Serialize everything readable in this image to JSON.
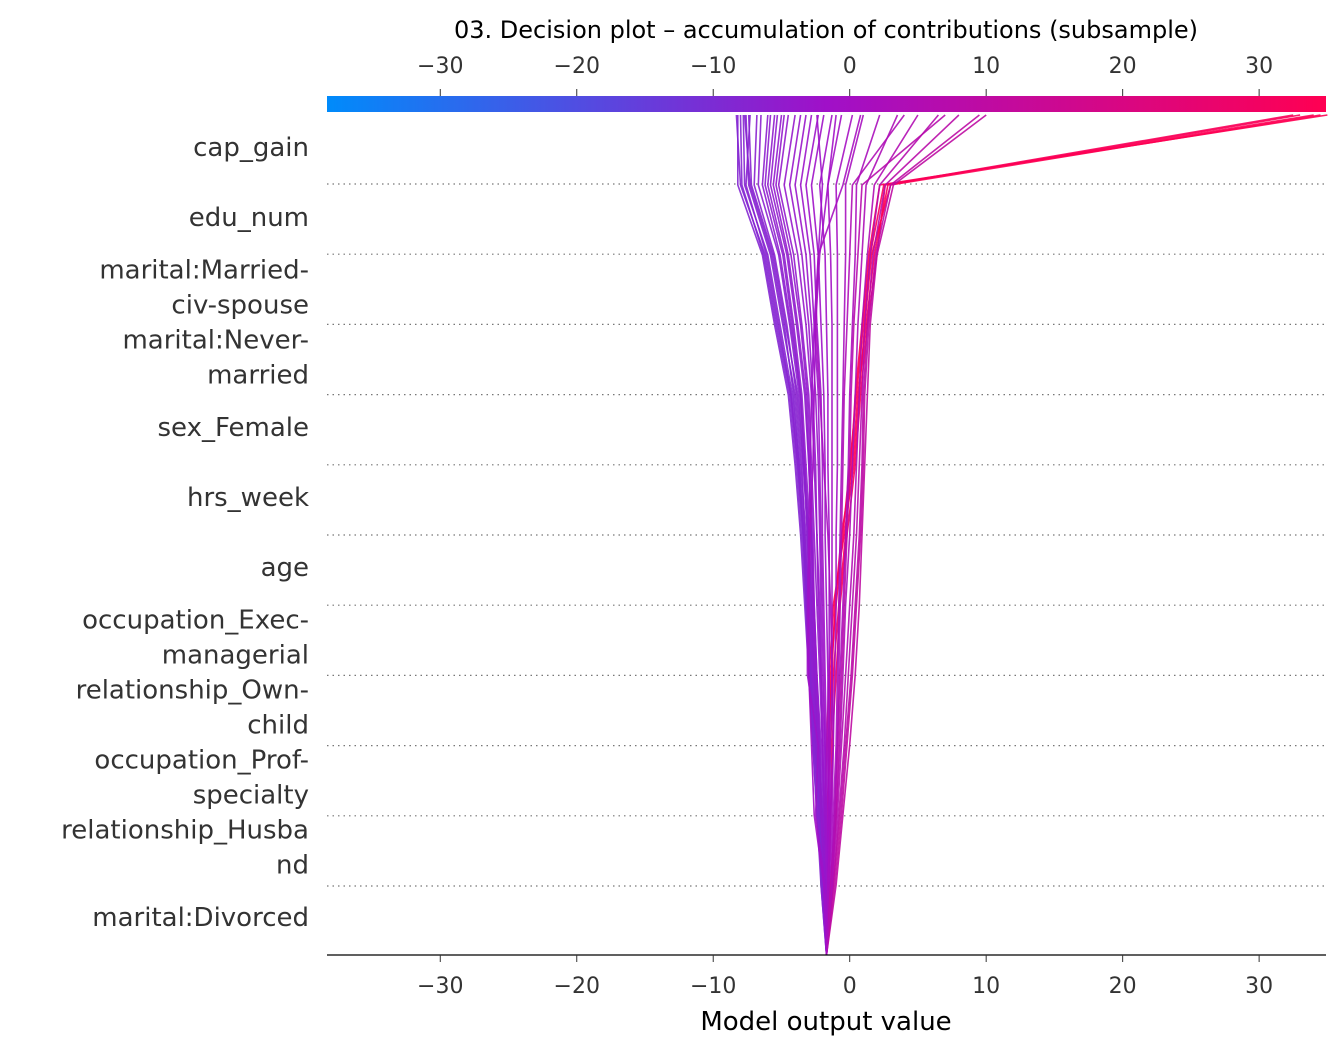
{
  "chart_data": {
    "type": "line",
    "title": "03. Decision plot – accumulation of contributions (subsample)",
    "xlabel": "Model output value",
    "ylabel": "",
    "xlim": [
      -38.3,
      34.9
    ],
    "xticks": [
      -30,
      -20,
      -10,
      0,
      10,
      20,
      30
    ],
    "xtick_labels": [
      "−30",
      "−20",
      "−10",
      "0",
      "10",
      "20",
      "30"
    ],
    "features_top_to_bottom": [
      [
        "cap_gain"
      ],
      [
        "edu_num"
      ],
      [
        "marital:Married-",
        "civ-spouse"
      ],
      [
        "marital:Never-",
        "married"
      ],
      [
        "sex_Female"
      ],
      [
        "hrs_week"
      ],
      [
        "age"
      ],
      [
        "occupation_Exec-",
        "managerial"
      ],
      [
        "relationship_Own-",
        "child"
      ],
      [
        "occupation_Prof-",
        "specialty"
      ],
      [
        "relationship_Husba",
        "nd"
      ],
      [
        "marital:Divorced"
      ]
    ],
    "base_value": -1.7,
    "colormap": {
      "low": "#008bfb",
      "mid": "#a010c8",
      "high": "#ff0052"
    },
    "grid": "dotted horizontal",
    "series": [
      {
        "values": [
          -1.7,
          -1.7,
          -1.6,
          -1.5,
          -1.4,
          -1.0,
          -0.5,
          0.0,
          0.5,
          1.0,
          1.5,
          2.5,
          34.0
        ]
      },
      {
        "values": [
          -1.7,
          -1.8,
          -1.5,
          -1.6,
          -1.3,
          -1.1,
          -0.6,
          0.2,
          0.6,
          1.2,
          1.8,
          2.8,
          33.0
        ]
      },
      {
        "values": [
          -1.7,
          -1.6,
          -1.7,
          -1.4,
          -1.2,
          -0.8,
          -0.3,
          0.1,
          0.4,
          0.9,
          1.4,
          2.2,
          35.0
        ]
      },
      {
        "values": [
          -1.7,
          -1.9,
          -1.8,
          -1.7,
          -1.5,
          -1.2,
          -0.4,
          0.3,
          0.7,
          1.1,
          1.6,
          3.0,
          34.5
        ]
      },
      {
        "values": [
          -1.7,
          -1.5,
          -1.4,
          -1.3,
          -1.0,
          -0.7,
          -0.2,
          0.4,
          0.8,
          1.3,
          2.0,
          2.6,
          32.5
        ]
      },
      {
        "values": [
          -1.7,
          -2.0,
          -2.3,
          -2.6,
          -2.9,
          -3.1,
          -3.4,
          -3.8,
          -4.3,
          -5.3,
          -6.2,
          -8.0,
          -8.3
        ]
      },
      {
        "values": [
          -1.7,
          -2.1,
          -2.4,
          -2.7,
          -3.0,
          -3.2,
          -3.5,
          -3.9,
          -4.4,
          -5.4,
          -6.3,
          -7.9,
          -8.0
        ]
      },
      {
        "values": [
          -1.7,
          -1.9,
          -2.2,
          -2.5,
          -2.8,
          -3.1,
          -3.3,
          -3.7,
          -4.2,
          -5.1,
          -6.0,
          -7.7,
          -7.8
        ]
      },
      {
        "values": [
          -1.7,
          -2.0,
          -2.1,
          -2.4,
          -2.7,
          -3.0,
          -3.2,
          -3.6,
          -4.0,
          -4.9,
          -5.8,
          -7.4,
          -7.6
        ]
      },
      {
        "values": [
          -1.7,
          -1.8,
          -2.0,
          -2.3,
          -2.6,
          -2.8,
          -3.0,
          -3.4,
          -3.8,
          -4.7,
          -5.6,
          -7.2,
          -7.4
        ]
      },
      {
        "values": [
          -1.7,
          -2.1,
          -2.2,
          -2.5,
          -2.9,
          -3.2,
          -3.4,
          -3.8,
          -4.3,
          -5.2,
          -6.1,
          -7.6,
          -7.3
        ]
      },
      {
        "values": [
          -1.7,
          -1.9,
          -2.4,
          -2.7,
          -3.0,
          -3.3,
          -3.6,
          -4.0,
          -4.5,
          -5.5,
          -6.4,
          -8.2,
          -8.2
        ]
      },
      {
        "values": [
          -1.7,
          -2.0,
          -2.3,
          -2.5,
          -2.8,
          -3.0,
          -3.3,
          -3.5,
          -3.9,
          -4.6,
          -5.5,
          -7.0,
          -6.8
        ]
      },
      {
        "values": [
          -1.7,
          -1.8,
          -2.1,
          -2.4,
          -2.6,
          -2.9,
          -3.1,
          -3.4,
          -3.7,
          -4.4,
          -5.2,
          -6.7,
          -6.5
        ]
      },
      {
        "values": [
          -1.7,
          -2.0,
          -2.2,
          -2.6,
          -2.9,
          -3.1,
          -3.4,
          -3.7,
          -4.1,
          -4.8,
          -5.7,
          -7.3,
          -7.7
        ]
      },
      {
        "values": [
          -1.7,
          -1.9,
          -2.1,
          -2.3,
          -2.6,
          -2.8,
          -3.0,
          -3.3,
          -3.6,
          -4.3,
          -5.1,
          -6.4,
          -6.0
        ]
      },
      {
        "values": [
          -1.7,
          -1.8,
          -2.0,
          -2.2,
          -2.5,
          -2.7,
          -2.9,
          -3.2,
          -3.5,
          -4.1,
          -4.8,
          -6.0,
          -5.5
        ]
      },
      {
        "values": [
          -1.7,
          -1.9,
          -2.1,
          -2.4,
          -2.7,
          -2.9,
          -3.1,
          -3.3,
          -3.6,
          -4.2,
          -4.9,
          -6.2,
          -5.8
        ]
      },
      {
        "values": [
          -1.7,
          -1.8,
          -1.9,
          -2.1,
          -2.4,
          -2.6,
          -2.8,
          -3.0,
          -3.2,
          -3.8,
          -4.5,
          -5.6,
          -5.0
        ]
      },
      {
        "values": [
          -1.7,
          -1.7,
          -1.9,
          -2.0,
          -2.2,
          -2.4,
          -2.6,
          -2.8,
          -3.0,
          -3.5,
          -4.1,
          -5.2,
          -4.5
        ]
      },
      {
        "values": [
          -1.7,
          -1.8,
          -2.0,
          -2.3,
          -2.5,
          -2.7,
          -2.8,
          -3.0,
          -3.3,
          -3.9,
          -4.6,
          -5.8,
          -5.3
        ]
      },
      {
        "values": [
          -1.7,
          -1.6,
          -1.8,
          -1.9,
          -2.1,
          -2.3,
          -2.4,
          -2.6,
          -2.8,
          -3.2,
          -3.8,
          -4.8,
          -4.0
        ]
      },
      {
        "values": [
          -1.7,
          -1.7,
          -1.8,
          -2.0,
          -2.1,
          -2.2,
          -2.4,
          -2.5,
          -2.7,
          -3.0,
          -3.5,
          -4.4,
          -3.6
        ]
      },
      {
        "values": [
          -1.7,
          -1.6,
          -1.7,
          -1.8,
          -2.0,
          -2.1,
          -2.2,
          -2.3,
          -2.5,
          -2.8,
          -3.2,
          -4.0,
          -3.2
        ]
      },
      {
        "values": [
          -1.7,
          -1.8,
          -2.1,
          -2.2,
          -2.4,
          -2.6,
          -2.7,
          -2.9,
          -3.1,
          -3.6,
          -4.3,
          -5.4,
          -4.8
        ]
      },
      {
        "values": [
          -1.7,
          -1.7,
          -1.7,
          -1.8,
          -1.9,
          -2.0,
          -2.1,
          -2.2,
          -2.3,
          -2.6,
          -2.9,
          -3.6,
          -2.8
        ]
      },
      {
        "values": [
          -1.7,
          -1.6,
          -1.6,
          -1.7,
          -1.8,
          -1.9,
          -2.0,
          -2.0,
          -2.1,
          -2.4,
          -2.6,
          -3.2,
          -2.3
        ]
      },
      {
        "values": [
          -1.7,
          -1.5,
          -1.5,
          -1.6,
          -1.6,
          -1.7,
          -1.8,
          -1.8,
          -1.9,
          -2.1,
          -2.3,
          -2.8,
          -1.9
        ]
      },
      {
        "values": [
          -1.7,
          -1.6,
          -1.5,
          -1.5,
          -1.5,
          -1.5,
          -1.5,
          -1.6,
          -1.6,
          -1.7,
          -1.8,
          -2.2,
          -1.3
        ]
      },
      {
        "values": [
          -1.7,
          -1.5,
          -1.4,
          -1.4,
          -1.3,
          -1.3,
          -1.3,
          -1.3,
          -1.3,
          -1.3,
          -1.4,
          -1.6,
          -0.6
        ]
      },
      {
        "values": [
          -1.7,
          -1.5,
          -1.3,
          -1.2,
          -1.1,
          -1.0,
          -1.0,
          -0.9,
          -0.9,
          -0.9,
          -0.9,
          -1.0,
          0.2
        ]
      },
      {
        "values": [
          -1.7,
          -1.4,
          -1.2,
          -1.0,
          -0.9,
          -0.8,
          -0.7,
          -0.6,
          -0.5,
          -0.4,
          -0.3,
          -0.3,
          1.0
        ]
      },
      {
        "values": [
          -1.7,
          -1.4,
          -1.1,
          -0.9,
          -0.7,
          -0.5,
          -0.3,
          -0.1,
          0.0,
          0.2,
          0.4,
          0.5,
          2.2
        ]
      },
      {
        "values": [
          -1.7,
          -1.3,
          -1.0,
          -0.7,
          -0.5,
          -0.3,
          0.0,
          0.2,
          0.4,
          0.6,
          0.9,
          1.2,
          3.5
        ]
      },
      {
        "values": [
          -1.7,
          -1.3,
          -0.9,
          -0.6,
          -0.3,
          0.0,
          0.3,
          0.5,
          0.7,
          0.9,
          1.3,
          1.8,
          5.0
        ]
      },
      {
        "values": [
          -1.7,
          -1.2,
          -0.8,
          -0.4,
          -0.1,
          0.2,
          0.5,
          0.7,
          0.9,
          1.1,
          1.5,
          2.2,
          6.5
        ]
      },
      {
        "values": [
          -1.7,
          -1.2,
          -0.7,
          -0.3,
          0.1,
          0.4,
          0.7,
          0.9,
          1.0,
          1.3,
          1.7,
          2.6,
          8.0
        ]
      },
      {
        "values": [
          -1.7,
          -1.1,
          -0.6,
          -0.2,
          0.2,
          0.5,
          0.8,
          1.0,
          1.1,
          1.4,
          1.9,
          3.0,
          9.5
        ]
      },
      {
        "values": [
          -1.7,
          -1.0,
          -0.5,
          0.0,
          0.4,
          0.7,
          0.9,
          1.1,
          1.3,
          1.5,
          2.0,
          3.2,
          10.0
        ]
      },
      {
        "values": [
          -1.7,
          -1.4,
          -1.0,
          -0.8,
          -0.6,
          -0.4,
          -0.2,
          0.0,
          0.1,
          0.3,
          0.6,
          0.9,
          7.0
        ]
      },
      {
        "values": [
          -1.7,
          -1.3,
          -1.1,
          -0.9,
          -0.8,
          -0.7,
          -0.6,
          -0.5,
          -0.4,
          -0.2,
          0.0,
          0.2,
          4.0
        ]
      },
      {
        "values": [
          -1.7,
          -1.9,
          -2.6,
          -2.8,
          -3.0,
          -3.0,
          -2.9,
          -2.7,
          -2.6,
          -2.5,
          -2.2,
          -1.6,
          -1.0
        ]
      },
      {
        "values": [
          -1.7,
          -1.8,
          -2.5,
          -2.3,
          -3.1,
          -3.1,
          -3.0,
          -2.9,
          -2.8,
          -2.6,
          -2.3,
          -2.0,
          -2.4
        ]
      },
      {
        "values": [
          -1.7,
          -1.6,
          -1.4,
          -1.2,
          -1.3,
          -1.4,
          -1.6,
          -1.9,
          -2.2,
          -2.5,
          -2.3,
          -0.5,
          0.8
        ]
      }
    ]
  }
}
